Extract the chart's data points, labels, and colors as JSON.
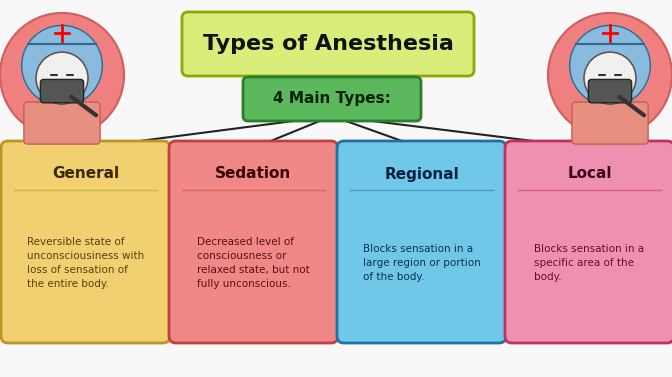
{
  "title": "Types of Anesthesia",
  "subtitle": "4 Main Types:",
  "title_box_color": "#d9ed7a",
  "title_border_color": "#8aaa00",
  "subtitle_box_color": "#5cb85c",
  "subtitle_border_color": "#2e7d2e",
  "background_color": "#f8f8f8",
  "boxes": [
    {
      "label": "General",
      "description": "Reversible state of\nunconsciousiness with\nloss of sensation of\nthe entire body.",
      "box_color": "#f0d070",
      "border_color": "#b89820",
      "label_color": "#3a2800",
      "desc_color": "#5a4010"
    },
    {
      "label": "Sedation",
      "description": "Decreased level of\nconsciousness or\nrelaxed state, but not\nfully unconscious.",
      "box_color": "#f08888",
      "border_color": "#c04040",
      "label_color": "#3a0000",
      "desc_color": "#5a1010"
    },
    {
      "label": "Regional",
      "description": "Blocks sensation in a\nlarge region or portion\nof the body.",
      "box_color": "#70c8e8",
      "border_color": "#2070a0",
      "label_color": "#002040",
      "desc_color": "#103050"
    },
    {
      "label": "Local",
      "description": "Blocks sensation in a\nspecific area of the\nbody.",
      "box_color": "#f090b0",
      "border_color": "#c03060",
      "label_color": "#3a0020",
      "desc_color": "#5a1030"
    }
  ],
  "line_color": "#222222",
  "nurse_outer_color": "#f08080",
  "nurse_hat_color": "#88bbdd",
  "nurse_face_color": "#f0d8b0",
  "nurse_body_color": "#e89080",
  "nurse_mask_color": "#444444"
}
